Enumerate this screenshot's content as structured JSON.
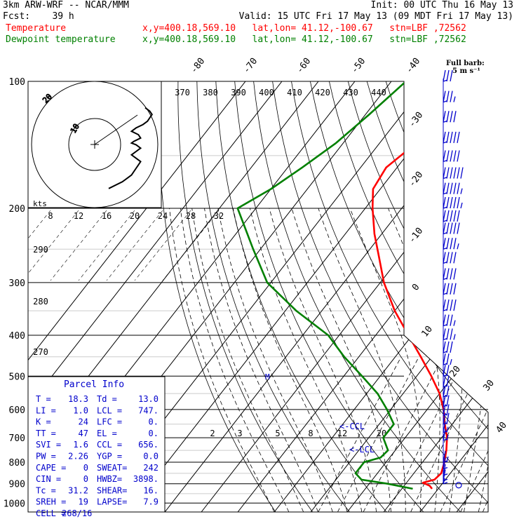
{
  "header": {
    "line1_left": "3km ARW-WRF -- NCAR/MMM",
    "line1_right": "Init: 00 UTC Thu 16 May 13",
    "line2_left": "Fcst:    39 h",
    "line2_right": "Valid: 15 UTC Fri 17 May 13 (09 MDT Fri 17 May 13)",
    "temp_label": "Temperature",
    "temp_info": "x,y=400.18,569.10   lat,lon= 41.12,-100.67   stn=LBF ,72562",
    "dew_label": "Dewpoint temperature",
    "dew_info": "x,y=400.18,569.10   lat,lon= 41.12,-100.67   stn=LBF ,72562"
  },
  "colors": {
    "temperature": "#ff0000",
    "dewpoint": "#008000",
    "barbs": "#0000cc",
    "parcel_text": "#0000cc",
    "hodograph": "#000000"
  },
  "barb_legend": {
    "line1": "Full barb:",
    "line2": "5 m s⁻¹"
  },
  "parcel_info": {
    "title": "Parcel Info",
    "rows": [
      [
        "T  =",
        "18.3",
        "Td =",
        "13.0"
      ],
      [
        "LI =",
        "1.0",
        "LCL =",
        "747."
      ],
      [
        "K  =",
        "24",
        "LFC =",
        "0."
      ],
      [
        "TT =",
        "47",
        "EL =",
        "0."
      ],
      [
        "SVI =",
        "1.6",
        "CCL =",
        "656."
      ],
      [
        "PW =",
        "2.26",
        "YGP =",
        "0.0"
      ],
      [
        "CAPE =",
        "0",
        "SWEAT=",
        "242"
      ],
      [
        "CIN =",
        "0",
        "HWBZ=",
        "3898."
      ],
      [
        "Tc =",
        "31.2",
        "SHEAR=",
        "16."
      ],
      [
        "SREH =",
        "19",
        "LAPSE=",
        "7.9"
      ],
      [
        "CELL =",
        "268/16",
        "",
        ""
      ]
    ]
  },
  "annotations": {
    "ccl": "<-CCL",
    "lcl": "<-LCL",
    "kts": "kts",
    "hodo_ring_10": "10",
    "hodo_ring_20": "20"
  },
  "chart_data": {
    "type": "line",
    "title": "",
    "yscale": "log",
    "ylim": [
      1000,
      100
    ],
    "pressure_ticks": [
      100,
      200,
      300,
      400,
      500,
      600,
      700,
      800,
      900,
      1000
    ],
    "isotherm_labels": [
      -80,
      -70,
      -60,
      -50,
      -40,
      -30,
      -20,
      -10,
      0,
      10,
      20,
      30,
      40
    ],
    "theta_labels": [
      370,
      380,
      390,
      400,
      410,
      420,
      430,
      440,
      290,
      280,
      270
    ],
    "mixing_ratio_labels_top": [
      8,
      12,
      16,
      20,
      24,
      28,
      32
    ],
    "mixing_ratio_labels_bottom": [
      2,
      3,
      5,
      8,
      12,
      20
    ],
    "series": [
      {
        "name": "Temperature",
        "p": [
          100,
          120,
          140,
          160,
          180,
          200,
          230,
          260,
          300,
          350,
          400,
          450,
          500,
          550,
          600,
          650,
          700,
          750,
          800,
          850,
          880,
          895,
          910,
          925
        ],
        "t": [
          -52,
          -56,
          -60,
          -63,
          -62,
          -58,
          -52,
          -46,
          -39,
          -30,
          -21,
          -13,
          -6,
          0,
          4.5,
          8,
          11.5,
          14,
          16,
          17.5,
          17,
          14.5,
          17,
          18.3
        ]
      },
      {
        "name": "Dewpoint temperature",
        "p": [
          100,
          120,
          140,
          160,
          180,
          200,
          250,
          300,
          350,
          400,
          450,
          500,
          550,
          600,
          650,
          700,
          750,
          780,
          800,
          850,
          880,
          900,
          925
        ],
        "t": [
          -76,
          -79,
          -82,
          -86,
          -90,
          -95,
          -82,
          -71,
          -57,
          -43,
          -34,
          -25,
          -17,
          -11,
          -6,
          -6,
          -2,
          -2.5,
          -6,
          -6,
          -3,
          5,
          13
        ]
      }
    ],
    "wind_barbs": [
      {
        "p": 100,
        "spd": 15
      },
      {
        "p": 112,
        "spd": 18
      },
      {
        "p": 125,
        "spd": 22
      },
      {
        "p": 140,
        "spd": 27
      },
      {
        "p": 155,
        "spd": 27
      },
      {
        "p": 170,
        "spd": 30
      },
      {
        "p": 185,
        "spd": 28
      },
      {
        "p": 200,
        "spd": 28
      },
      {
        "p": 215,
        "spd": 25
      },
      {
        "p": 230,
        "spd": 25
      },
      {
        "p": 250,
        "spd": 23
      },
      {
        "p": 270,
        "spd": 22
      },
      {
        "p": 295,
        "spd": 22
      },
      {
        "p": 320,
        "spd": 20
      },
      {
        "p": 350,
        "spd": 20
      },
      {
        "p": 380,
        "spd": 18
      },
      {
        "p": 410,
        "spd": 18
      },
      {
        "p": 440,
        "spd": 15
      },
      {
        "p": 470,
        "spd": 13
      },
      {
        "p": 500,
        "spd": 12
      },
      {
        "p": 530,
        "spd": 10
      },
      {
        "p": 560,
        "spd": 10
      },
      {
        "p": 590,
        "spd": 10
      },
      {
        "p": 620,
        "spd": 10
      },
      {
        "p": 650,
        "spd": 10
      },
      {
        "p": 680,
        "spd": 8
      },
      {
        "p": 710,
        "spd": 8
      },
      {
        "p": 800,
        "spd": 8
      },
      {
        "p": 830,
        "spd": 6
      },
      {
        "p": 860,
        "spd": 6
      },
      {
        "p": 885,
        "spd": 5
      },
      {
        "p": 900,
        "spd": 4
      }
    ],
    "hodograph": {
      "u": [
        0,
        3,
        5,
        6,
        6.5,
        7,
        6,
        5,
        6,
        7,
        6,
        5,
        5.5,
        7,
        6.5,
        5,
        6,
        7.5,
        8.5,
        9,
        9.5,
        9,
        8
      ],
      "v": [
        -6,
        -4,
        -2,
        0,
        1,
        2,
        3,
        4,
        5,
        6,
        7,
        7.5,
        8,
        9,
        10,
        11,
        12,
        13,
        14,
        15,
        16,
        17,
        18
      ]
    }
  }
}
